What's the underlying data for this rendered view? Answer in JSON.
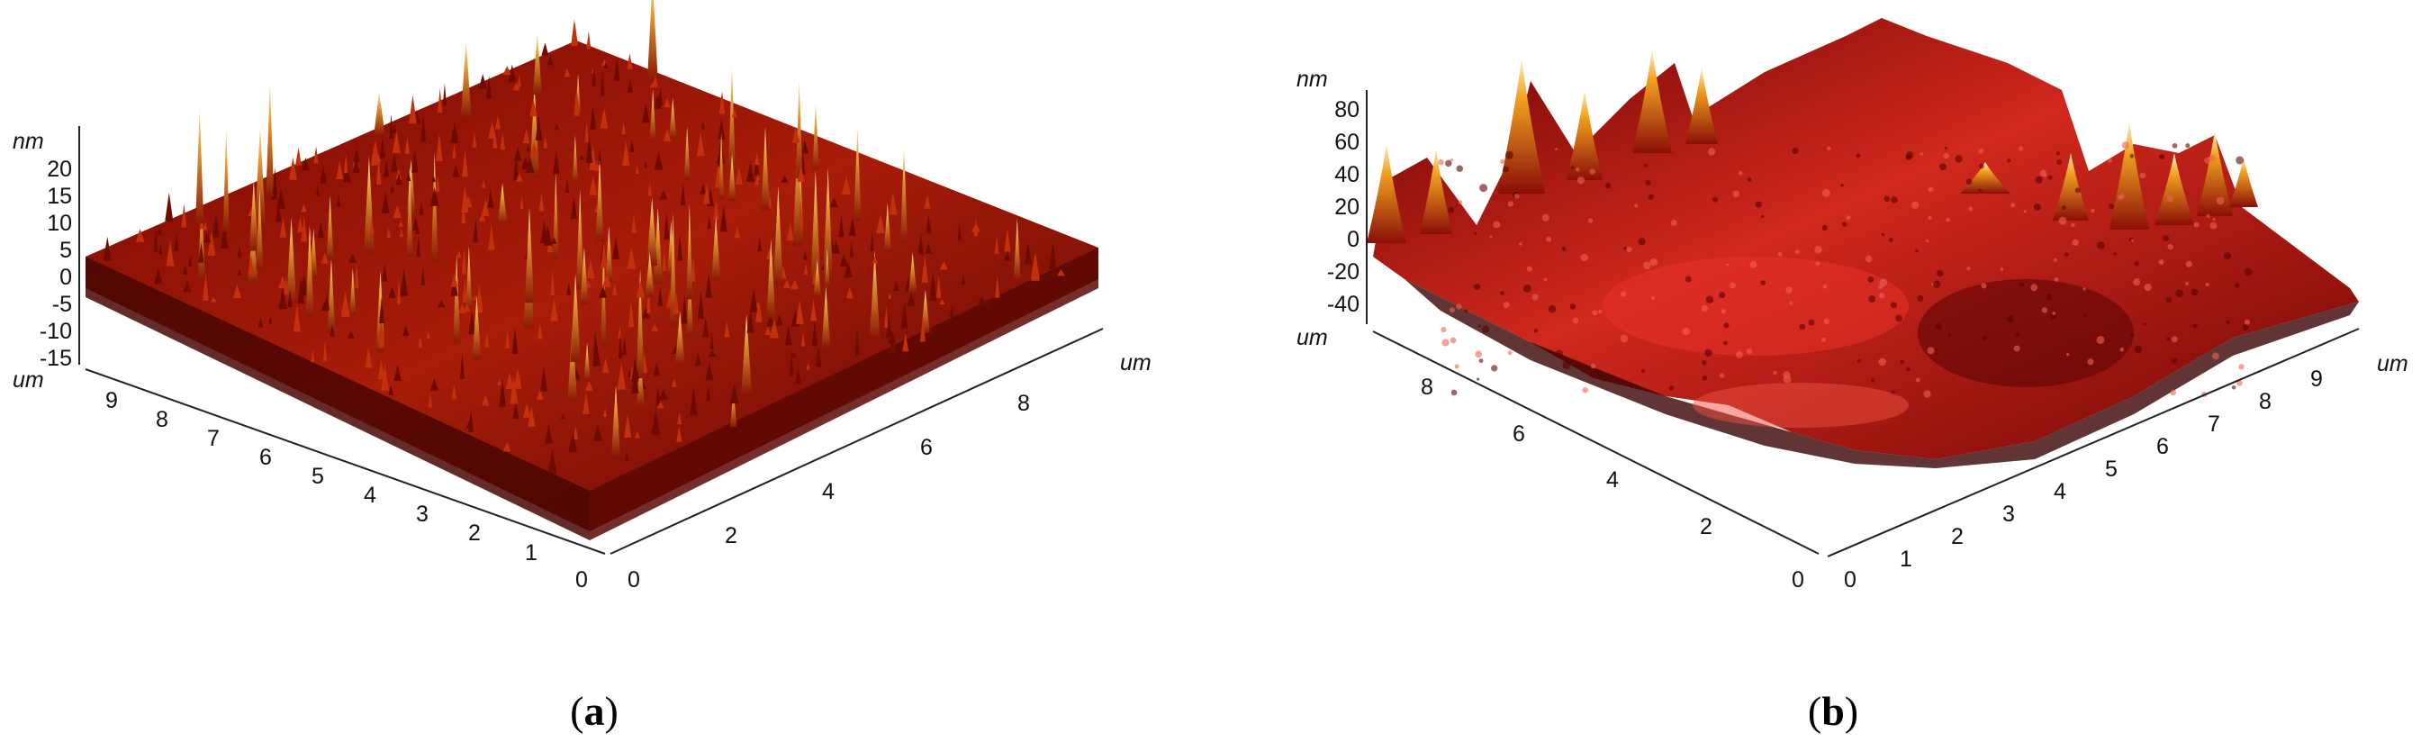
{
  "panels": [
    {
      "id": "a",
      "caption_letter": "a",
      "z_unit": "nm",
      "x_unit": "um",
      "y_unit": "um",
      "z_ticks": [
        "20",
        "15",
        "10",
        "5",
        "0",
        "-5",
        "-10",
        "-15"
      ],
      "left_axis_ticks": [
        "9",
        "8",
        "7",
        "6",
        "5",
        "4",
        "3",
        "2",
        "1",
        "0"
      ],
      "right_axis_ticks": [
        "0",
        "2",
        "4",
        "6",
        "8"
      ],
      "colors": {
        "dark": "#3a0000",
        "mid": "#b22410",
        "bright": "#e8b040",
        "tip": "#f6e6b0"
      }
    },
    {
      "id": "b",
      "caption_letter": "b",
      "z_unit": "nm",
      "x_unit": "um",
      "y_unit": "um",
      "z_ticks": [
        "80",
        "60",
        "40",
        "20",
        "0",
        "-20",
        "-40"
      ],
      "left_axis_ticks": [
        "8",
        "6",
        "4",
        "2",
        "0"
      ],
      "right_axis_ticks": [
        "0",
        "1",
        "2",
        "3",
        "4",
        "5",
        "6",
        "7",
        "8",
        "9"
      ],
      "colors": {
        "dark": "#4a0000",
        "mid": "#c8201a",
        "bright": "#f0a020",
        "tip": "#fbe0a0"
      }
    }
  ]
}
